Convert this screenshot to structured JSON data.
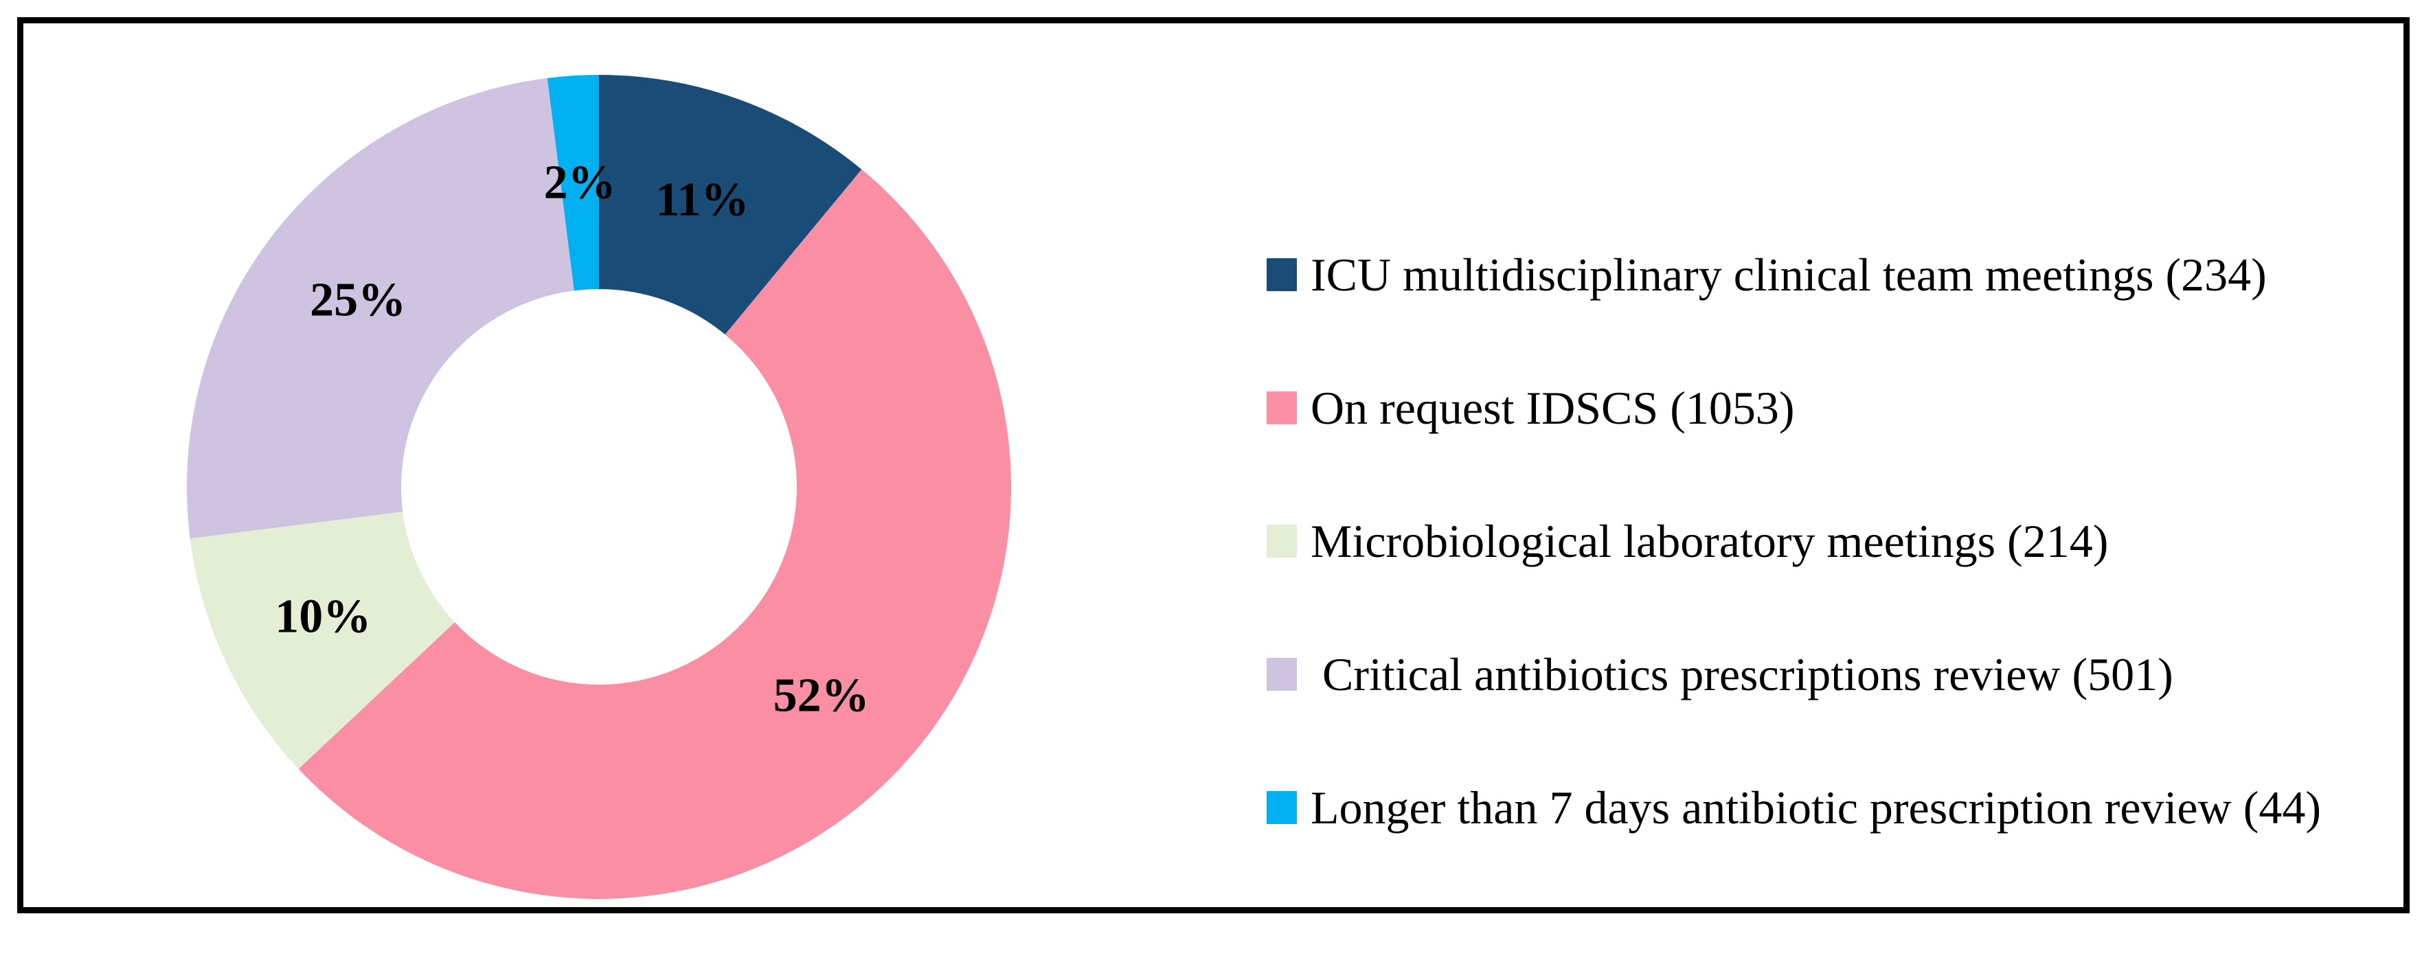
{
  "figure": {
    "background_color": "#ffffff",
    "frame_border_color": "#000000",
    "data_label_color": "#000000"
  },
  "chart_data": {
    "type": "pie",
    "subtype": "donut",
    "title": "",
    "legend_position": "right",
    "start_angle_deg": 0,
    "direction": "clockwise",
    "donut_hole_ratio": 0.48,
    "categories": [
      "ICU multidisciplinary clinical team meetings",
      "On request IDSCS",
      "Microbiological laboratory meetings",
      "Critical antibiotics prescriptions review",
      "Longer than 7 days antibiotic prescription review"
    ],
    "values": [
      234,
      1053,
      214,
      501,
      44
    ],
    "slices": [
      {
        "legend_label": "ICU multidisciplinary clinical team meetings (234)",
        "count": 234,
        "percent": 11,
        "percent_label": "11%",
        "color": "#1a4c78"
      },
      {
        "legend_label": "On request IDSCS (1053)",
        "count": 1053,
        "percent": 52,
        "percent_label": "52%",
        "color": "#fa8ea3"
      },
      {
        "legend_label": "Microbiological laboratory meetings (214)",
        "count": 214,
        "percent": 10,
        "percent_label": "10%",
        "color": "#e3eed5"
      },
      {
        "legend_label": " Critical antibiotics prescriptions review (501)",
        "count": 501,
        "percent": 25,
        "percent_label": "25%",
        "color": "#cec3e1"
      },
      {
        "legend_label": "Longer than 7 days antibiotic prescription review (44)",
        "count": 44,
        "percent": 2,
        "percent_label": "2%",
        "color": "#00b0f0"
      }
    ]
  }
}
